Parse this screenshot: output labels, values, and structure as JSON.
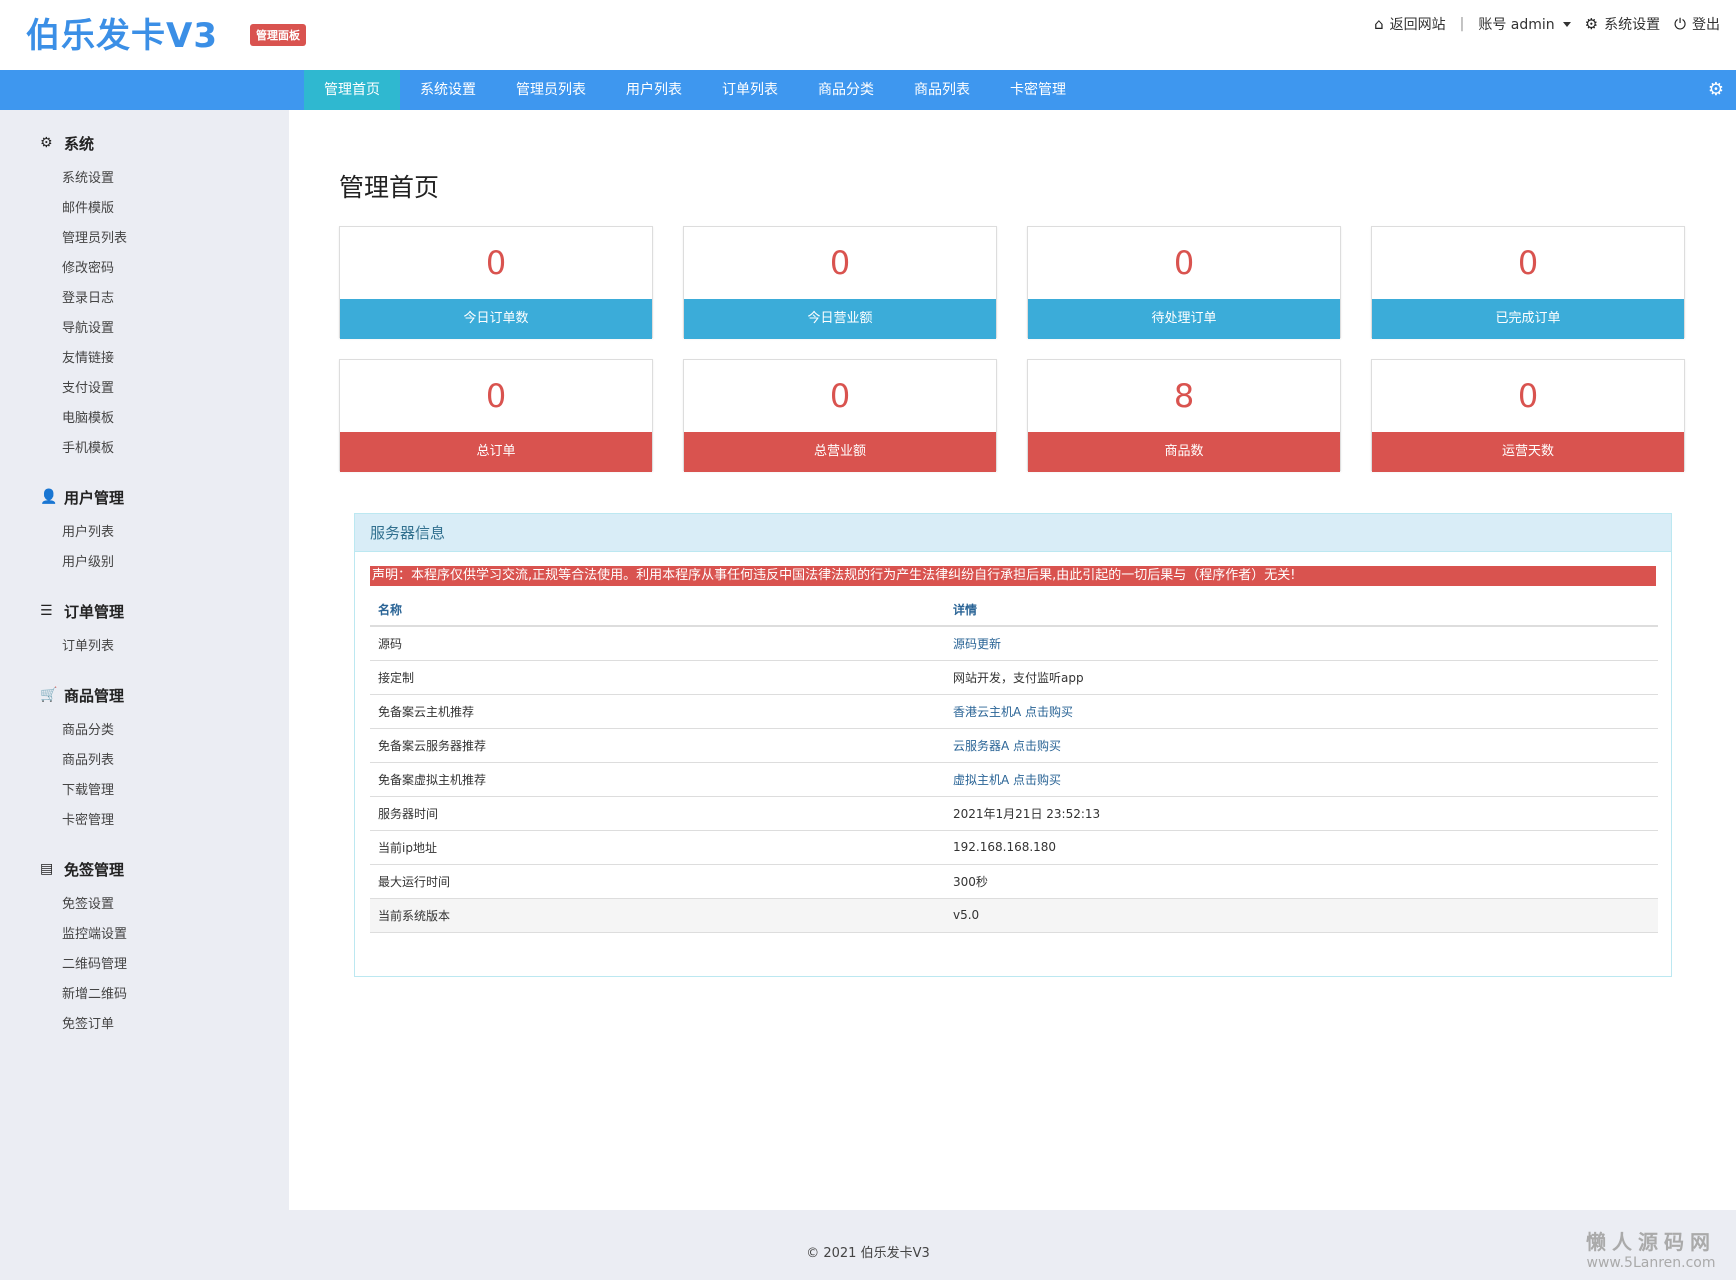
{
  "header": {
    "logo": "伯乐发卡V3",
    "badge": "管理面板",
    "links": {
      "home": "返回网站",
      "account": "账号 admin",
      "settings": "系统设置",
      "logout": "登出"
    },
    "icons": {
      "home": "home-icon",
      "settings": "gear-icon",
      "logout": "power-icon"
    }
  },
  "nav": {
    "items": [
      "管理首页",
      "系统设置",
      "管理员列表",
      "用户列表",
      "订单列表",
      "商品分类",
      "商品列表",
      "卡密管理"
    ],
    "active_index": 0,
    "accent": "#3e97ef",
    "active_color": "#2fb8d0"
  },
  "sidebar": {
    "groups": [
      {
        "title": "系统",
        "icon": "gear-icon",
        "items": [
          "系统设置",
          "邮件模版",
          "管理员列表",
          "修改密码",
          "登录日志",
          "导航设置",
          "友情链接",
          "支付设置",
          "电脑模板",
          "手机模板"
        ]
      },
      {
        "title": "用户管理",
        "icon": "user-icon",
        "items": [
          "用户列表",
          "用户级别"
        ]
      },
      {
        "title": "订单管理",
        "icon": "list-icon",
        "items": [
          "订单列表"
        ]
      },
      {
        "title": "商品管理",
        "icon": "cart-icon",
        "items": [
          "商品分类",
          "商品列表",
          "下载管理",
          "卡密管理"
        ]
      },
      {
        "title": "免签管理",
        "icon": "card-icon",
        "items": [
          "免签设置",
          "监控端设置",
          "二维码管理",
          "新增二维码",
          "免签订单"
        ]
      }
    ]
  },
  "main": {
    "title": "管理首页",
    "stats": [
      {
        "value": "0",
        "label": "今日订单数"
      },
      {
        "value": "0",
        "label": "今日营业额"
      },
      {
        "value": "0",
        "label": "待处理订单"
      },
      {
        "value": "0",
        "label": "已完成订单"
      },
      {
        "value": "0",
        "label": "总订单"
      },
      {
        "value": "0",
        "label": "总营业额"
      },
      {
        "value": "8",
        "label": "商品数"
      },
      {
        "value": "0",
        "label": "运营天数"
      }
    ],
    "server": {
      "title": "服务器信息",
      "notice": "声明：本程序仅供学习交流,正规等合法使用。利用本程序从事任何违反中国法律法规的行为产生法律纠纷自行承担后果,由此引起的一切后果与（程序作者）无关!",
      "columns": [
        "名称",
        "详情"
      ],
      "rows": [
        {
          "name": "源码",
          "detail": "源码更新",
          "link": true
        },
        {
          "name": "接定制",
          "detail": "网站开发，支付监听app",
          "link": false
        },
        {
          "name": "免备案云主机推荐",
          "detail": "香港云主机A 点击购买",
          "link": true
        },
        {
          "name": "免备案云服务器推荐",
          "detail": "云服务器A 点击购买",
          "link": true
        },
        {
          "name": "免备案虚拟主机推荐",
          "detail": "虚拟主机A 点击购买",
          "link": true
        },
        {
          "name": "服务器时间",
          "detail": "2021年1月21日 23:52:13",
          "link": false
        },
        {
          "name": "当前ip地址",
          "detail": "192.168.168.180",
          "link": false
        },
        {
          "name": "最大运行时间",
          "detail": "300秒",
          "link": false
        },
        {
          "name": "当前系统版本",
          "detail": "v5.0",
          "link": false
        }
      ]
    }
  },
  "footer": {
    "copyright": "© 2021 伯乐发卡V3",
    "watermark_title": "懒人源码网",
    "watermark_url": "www.5Lanren.com"
  }
}
